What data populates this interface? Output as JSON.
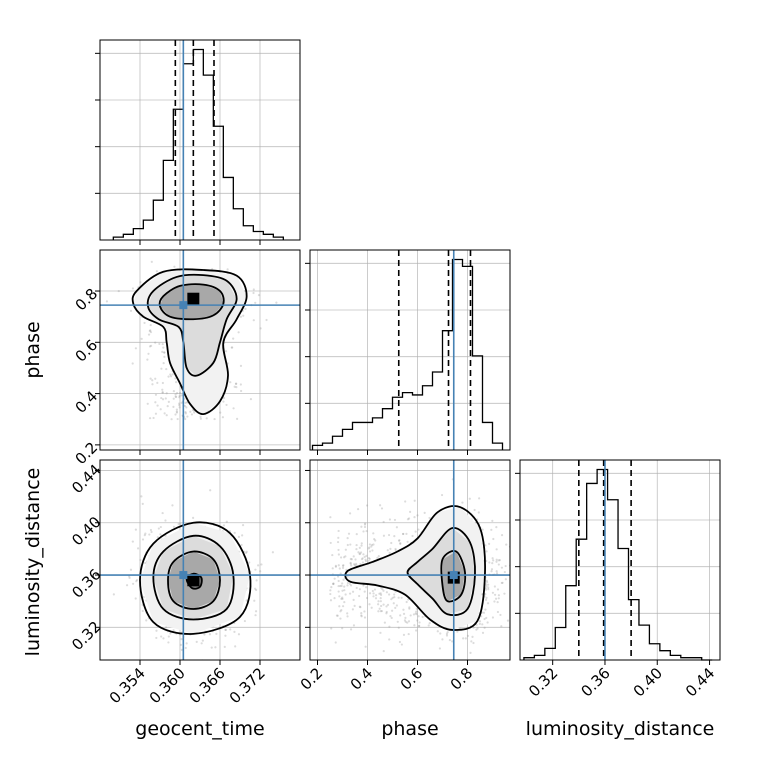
{
  "parameters": [
    "geocent_time",
    "phase",
    "luminosity_distance"
  ],
  "colors": {
    "truth": "#4682b4",
    "histogram": "#000000",
    "points": "#9a9a9a",
    "density_dark": "#000000",
    "density_light": "#e8e8e8"
  },
  "chart_data": [
    {
      "type": "histogram",
      "panel": "geocent_time marginal",
      "xlabel": "",
      "xlim": [
        0.348,
        0.378
      ],
      "bin_edges": [
        0.35,
        0.3515,
        0.353,
        0.3545,
        0.356,
        0.3575,
        0.359,
        0.3605,
        0.362,
        0.3635,
        0.365,
        0.3665,
        0.368,
        0.3695,
        0.371,
        0.3725,
        0.374,
        0.3755
      ],
      "counts": [
        1,
        2,
        4,
        7,
        14,
        28,
        46,
        62,
        67,
        58,
        40,
        22,
        11,
        5,
        3,
        2,
        1
      ],
      "quantiles": [
        0.3593,
        0.362,
        0.3651
      ],
      "truth": 0.3605,
      "grid": true
    },
    {
      "type": "scatter",
      "panel": "phase vs geocent_time",
      "xlabel": "",
      "ylabel": "phase",
      "xlim": [
        0.348,
        0.378
      ],
      "ylim": [
        0.18,
        0.96
      ],
      "yticks": [
        "0.2",
        "0.4",
        "0.6",
        "0.8"
      ],
      "truth": {
        "x": 0.3605,
        "y": 0.745
      },
      "density_peak": {
        "x": 0.362,
        "y": 0.77
      },
      "contours": [
        [
          [
            0.3575,
            0.78
          ],
          [
            0.36,
            0.82
          ],
          [
            0.3635,
            0.825
          ],
          [
            0.366,
            0.8
          ],
          [
            0.3665,
            0.75
          ],
          [
            0.365,
            0.705
          ],
          [
            0.362,
            0.69
          ],
          [
            0.3585,
            0.7
          ],
          [
            0.357,
            0.74
          ]
        ],
        [
          [
            0.356,
            0.8
          ],
          [
            0.3595,
            0.855
          ],
          [
            0.3635,
            0.862
          ],
          [
            0.367,
            0.84
          ],
          [
            0.3685,
            0.77
          ],
          [
            0.367,
            0.69
          ],
          [
            0.366,
            0.6
          ],
          [
            0.365,
            0.52
          ],
          [
            0.3625,
            0.47
          ],
          [
            0.361,
            0.5
          ],
          [
            0.3605,
            0.6
          ],
          [
            0.3598,
            0.66
          ],
          [
            0.3568,
            0.69
          ],
          [
            0.3552,
            0.74
          ]
        ],
        [
          [
            0.3535,
            0.8
          ],
          [
            0.3575,
            0.875
          ],
          [
            0.3635,
            0.882
          ],
          [
            0.3685,
            0.86
          ],
          [
            0.37,
            0.78
          ],
          [
            0.3685,
            0.69
          ],
          [
            0.3665,
            0.6
          ],
          [
            0.3672,
            0.47
          ],
          [
            0.366,
            0.37
          ],
          [
            0.3635,
            0.32
          ],
          [
            0.3615,
            0.36
          ],
          [
            0.36,
            0.44
          ],
          [
            0.3585,
            0.52
          ],
          [
            0.358,
            0.6
          ],
          [
            0.3575,
            0.66
          ],
          [
            0.3545,
            0.7
          ],
          [
            0.353,
            0.75
          ]
        ]
      ],
      "grid": true
    },
    {
      "type": "histogram",
      "panel": "phase marginal",
      "xlabel": "",
      "xlim": [
        0.17,
        0.97
      ],
      "bin_edges": [
        0.18,
        0.22,
        0.26,
        0.3,
        0.34,
        0.38,
        0.42,
        0.46,
        0.5,
        0.54,
        0.58,
        0.62,
        0.66,
        0.7,
        0.74,
        0.78,
        0.82,
        0.86,
        0.9,
        0.94
      ],
      "counts": [
        2,
        3,
        6,
        9,
        12,
        12,
        14,
        18,
        23,
        25,
        24,
        28,
        34,
        52,
        83,
        80,
        41,
        12,
        3
      ],
      "quantiles": [
        0.525,
        0.724,
        0.812
      ],
      "truth": 0.745,
      "grid": true
    },
    {
      "type": "scatter",
      "panel": "luminosity_distance vs geocent_time",
      "xlabel": "geocent_time",
      "ylabel": "luminosity_distance",
      "xlim": [
        0.348,
        0.378
      ],
      "ylim": [
        0.295,
        0.448
      ],
      "xticks": [
        "0.354",
        "0.360",
        "0.366",
        "0.372"
      ],
      "yticks": [
        "0.32",
        "0.36",
        "0.40",
        "0.44"
      ],
      "truth": {
        "x": 0.3605,
        "y": 0.36
      },
      "density_peak": {
        "x": 0.362,
        "y": 0.356
      },
      "contours": [
        [
          [
            0.361,
            0.357
          ],
          [
            0.362,
            0.361
          ],
          [
            0.3632,
            0.358
          ],
          [
            0.363,
            0.351
          ],
          [
            0.3618,
            0.35
          ]
        ],
        [
          [
            0.359,
            0.37
          ],
          [
            0.362,
            0.378
          ],
          [
            0.365,
            0.372
          ],
          [
            0.366,
            0.356
          ],
          [
            0.365,
            0.34
          ],
          [
            0.362,
            0.334
          ],
          [
            0.359,
            0.34
          ],
          [
            0.3582,
            0.356
          ]
        ],
        [
          [
            0.3575,
            0.378
          ],
          [
            0.362,
            0.39
          ],
          [
            0.366,
            0.382
          ],
          [
            0.368,
            0.36
          ],
          [
            0.367,
            0.334
          ],
          [
            0.362,
            0.326
          ],
          [
            0.3575,
            0.334
          ],
          [
            0.356,
            0.358
          ]
        ],
        [
          [
            0.356,
            0.384
          ],
          [
            0.362,
            0.4
          ],
          [
            0.3675,
            0.392
          ],
          [
            0.3705,
            0.36
          ],
          [
            0.369,
            0.328
          ],
          [
            0.362,
            0.315
          ],
          [
            0.356,
            0.324
          ],
          [
            0.354,
            0.356
          ]
        ]
      ],
      "grid": true
    },
    {
      "type": "scatter",
      "panel": "luminosity_distance vs phase",
      "xlabel": "phase",
      "ylabel": "",
      "xlim": [
        0.17,
        0.97
      ],
      "ylim": [
        0.295,
        0.448
      ],
      "xticks": [
        "0.2",
        "0.4",
        "0.6",
        "0.8"
      ],
      "truth": {
        "x": 0.745,
        "y": 0.36
      },
      "density_peak": {
        "x": 0.745,
        "y": 0.358
      },
      "contours": [
        [
          [
            0.7,
            0.372
          ],
          [
            0.755,
            0.378
          ],
          [
            0.79,
            0.362
          ],
          [
            0.775,
            0.345
          ],
          [
            0.72,
            0.34
          ],
          [
            0.7,
            0.352
          ]
        ],
        [
          [
            0.66,
            0.38
          ],
          [
            0.74,
            0.396
          ],
          [
            0.81,
            0.385
          ],
          [
            0.83,
            0.36
          ],
          [
            0.8,
            0.334
          ],
          [
            0.72,
            0.33
          ],
          [
            0.66,
            0.342
          ],
          [
            0.6,
            0.353
          ],
          [
            0.56,
            0.362
          ],
          [
            0.6,
            0.37
          ]
        ],
        [
          [
            0.6,
            0.388
          ],
          [
            0.68,
            0.408
          ],
          [
            0.77,
            0.412
          ],
          [
            0.85,
            0.396
          ],
          [
            0.87,
            0.362
          ],
          [
            0.84,
            0.325
          ],
          [
            0.74,
            0.318
          ],
          [
            0.65,
            0.326
          ],
          [
            0.55,
            0.345
          ],
          [
            0.44,
            0.352
          ],
          [
            0.33,
            0.355
          ],
          [
            0.32,
            0.363
          ],
          [
            0.42,
            0.37
          ],
          [
            0.52,
            0.378
          ]
        ]
      ],
      "grid": true
    },
    {
      "type": "histogram",
      "panel": "luminosity_distance marginal",
      "xlabel": "luminosity_distance",
      "xlim": [
        0.295,
        0.448
      ],
      "xticks": [
        "0.32",
        "0.36",
        "0.40",
        "0.44"
      ],
      "bin_edges": [
        0.298,
        0.306,
        0.314,
        0.322,
        0.33,
        0.338,
        0.346,
        0.354,
        0.362,
        0.37,
        0.378,
        0.386,
        0.394,
        0.402,
        0.41,
        0.418,
        0.426,
        0.434,
        0.442
      ],
      "counts": [
        1,
        2,
        5,
        14,
        32,
        52,
        76,
        82,
        69,
        48,
        26,
        15,
        7,
        4,
        2,
        1,
        1,
        0
      ],
      "quantiles": [
        0.34,
        0.359,
        0.38
      ],
      "truth": 0.36,
      "grid": true
    }
  ]
}
